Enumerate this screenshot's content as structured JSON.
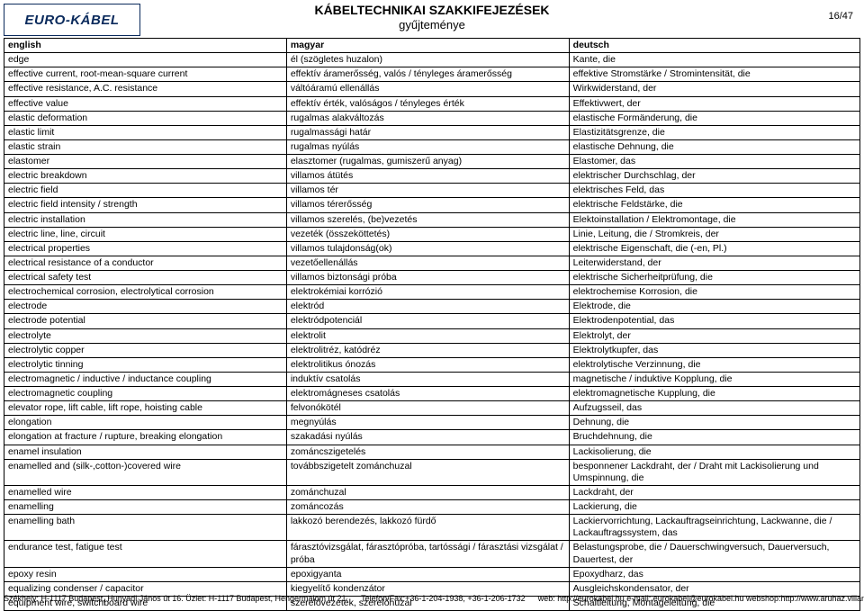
{
  "logo_text": "EURO-KÁBEL",
  "title": "KÁBELTECHNIKAI SZAKKIFEJEZÉSEK",
  "subtitle": "gyűjteménye",
  "page_num": "16/47",
  "columns": [
    "english",
    "magyar",
    "deutsch"
  ],
  "rows": [
    [
      "edge",
      "él (szögletes huzalon)",
      "Kante, die"
    ],
    [
      "effective current, root-mean-square current",
      "effektív áramerősség, valós / tényleges áramerősség",
      "effektive Stromstärke / Stromintensität, die"
    ],
    [
      "effective resistance, A.C. resistance",
      "váltóáramú ellenállás",
      "Wirkwiderstand, der"
    ],
    [
      "effective value",
      "effektív érték, valóságos / tényleges érték",
      "Effektivwert, der"
    ],
    [
      "elastic deformation",
      "rugalmas alakváltozás",
      "elastische Formänderung, die"
    ],
    [
      "elastic limit",
      "rugalmassági határ",
      "Elastizitätsgrenze, die"
    ],
    [
      "elastic strain",
      "rugalmas nyúlás",
      "elastische Dehnung, die"
    ],
    [
      "elastomer",
      "elasztomer (rugalmas, gumiszerű anyag)",
      "Elastomer, das"
    ],
    [
      "electric breakdown",
      "villamos átütés",
      "elektrischer Durchschlag, der"
    ],
    [
      "electric field",
      "villamos tér",
      "elektrisches Feld, das"
    ],
    [
      "electric field intensity / strength",
      "villamos térerősség",
      "elektrische Feldstärke, die"
    ],
    [
      "electric installation",
      "villamos szerelés, (be)vezetés",
      "Elektoinstallation / Elektromontage, die"
    ],
    [
      "electric line, line, circuit",
      "vezeték (összeköttetés)",
      "Linie, Leitung, die / Stromkreis, der"
    ],
    [
      "electrical properties",
      "villamos tulajdonság(ok)",
      "elektrische Eigenschaft, die (-en, Pl.)"
    ],
    [
      "electrical resistance of a conductor",
      "vezetőellenállás",
      "Leiterwiderstand, der"
    ],
    [
      "electrical safety test",
      "villamos biztonsági próba",
      "elektrische Sicherheitprüfung, die"
    ],
    [
      "electrochemical corrosion, electrolytical corrosion",
      "elektrokémiai korrózió",
      "elektrochemise Korrosion, die"
    ],
    [
      "electrode",
      "elektród",
      "Elektrode, die"
    ],
    [
      "electrode potential",
      "elektródpotenciál",
      "Elektrodenpotential, das"
    ],
    [
      "electrolyte",
      "elektrolit",
      "Elektrolyt, der"
    ],
    [
      "electrolytic copper",
      "elektrolitréz, katódréz",
      "Elektrolytkupfer, das"
    ],
    [
      "electrolytic tinning",
      "elektrolitikus ónozás",
      "elektrolytische Verzinnung, die"
    ],
    [
      "electromagnetic / inductive / inductance coupling",
      "induktív csatolás",
      "magnetische / induktive Kopplung, die"
    ],
    [
      "electromagnetic coupling",
      "elektromágneses csatolás",
      "elektromagnetische Kupplung, die"
    ],
    [
      "elevator rope, lift cable, lift rope, hoisting cable",
      "felvonókötél",
      "Aufzugsseil, das"
    ],
    [
      "elongation",
      "megnyúlás",
      "Dehnung, die"
    ],
    [
      "elongation at fracture / rupture, breaking elongation",
      "szakadási nyúlás",
      "Bruchdehnung, die"
    ],
    [
      "enamel insulation",
      "zománcszigetelés",
      "Lackisolierung, die"
    ],
    [
      "enamelled and (silk-,cotton-)covered wire",
      "továbbszigetelt zománchuzal",
      "besponnener Lackdraht, der / Draht mit Lackisolierung und Umspinnung, die"
    ],
    [
      "enamelled wire",
      "zománchuzal",
      "Lackdraht, der"
    ],
    [
      "enamelling",
      "zománcozás",
      "Lackierung, die"
    ],
    [
      "enamelling bath",
      "lakkozó berendezés, lakkozó fürdő",
      "Lackiervorrichtung, Lackauftragseinrichtung, Lackwanne, die / Lackauftragssystem, das"
    ],
    [
      "endurance test, fatigue test",
      "fárasztóvizsgálat, fárasztópróba, tartóssági / fárasztási vizsgálat / próba",
      "Belastungsprobe, die / Dauerschwingversuch, Dauerversuch, Dauertest, der"
    ],
    [
      "epoxy resin",
      "epoxigyanta",
      "Epoxydharz, das"
    ],
    [
      "equalizing condenser / capacitor",
      "kiegyelítő kondenzátor",
      "Ausgleichskondensator, der"
    ],
    [
      "equipment wire, switchboard wire",
      "szerelővezeték, szerelőhuzal",
      "Schaltleitung, Montageleitung, die"
    ]
  ],
  "footer": {
    "address": "Székhely: H-1117 Budapest, Hunyadi János út 16. Üzlet: H-1117 Budapest, Hengermalom út 21.",
    "phone": "Telefon/Fax:+36-1-204-1938, +36-1-206-1732",
    "web": "web: http://eurokabel.hu  e-mail: eurokabel@eurokabel.hu  webshop:http://www.aruhaz.villanyshop.hu"
  }
}
